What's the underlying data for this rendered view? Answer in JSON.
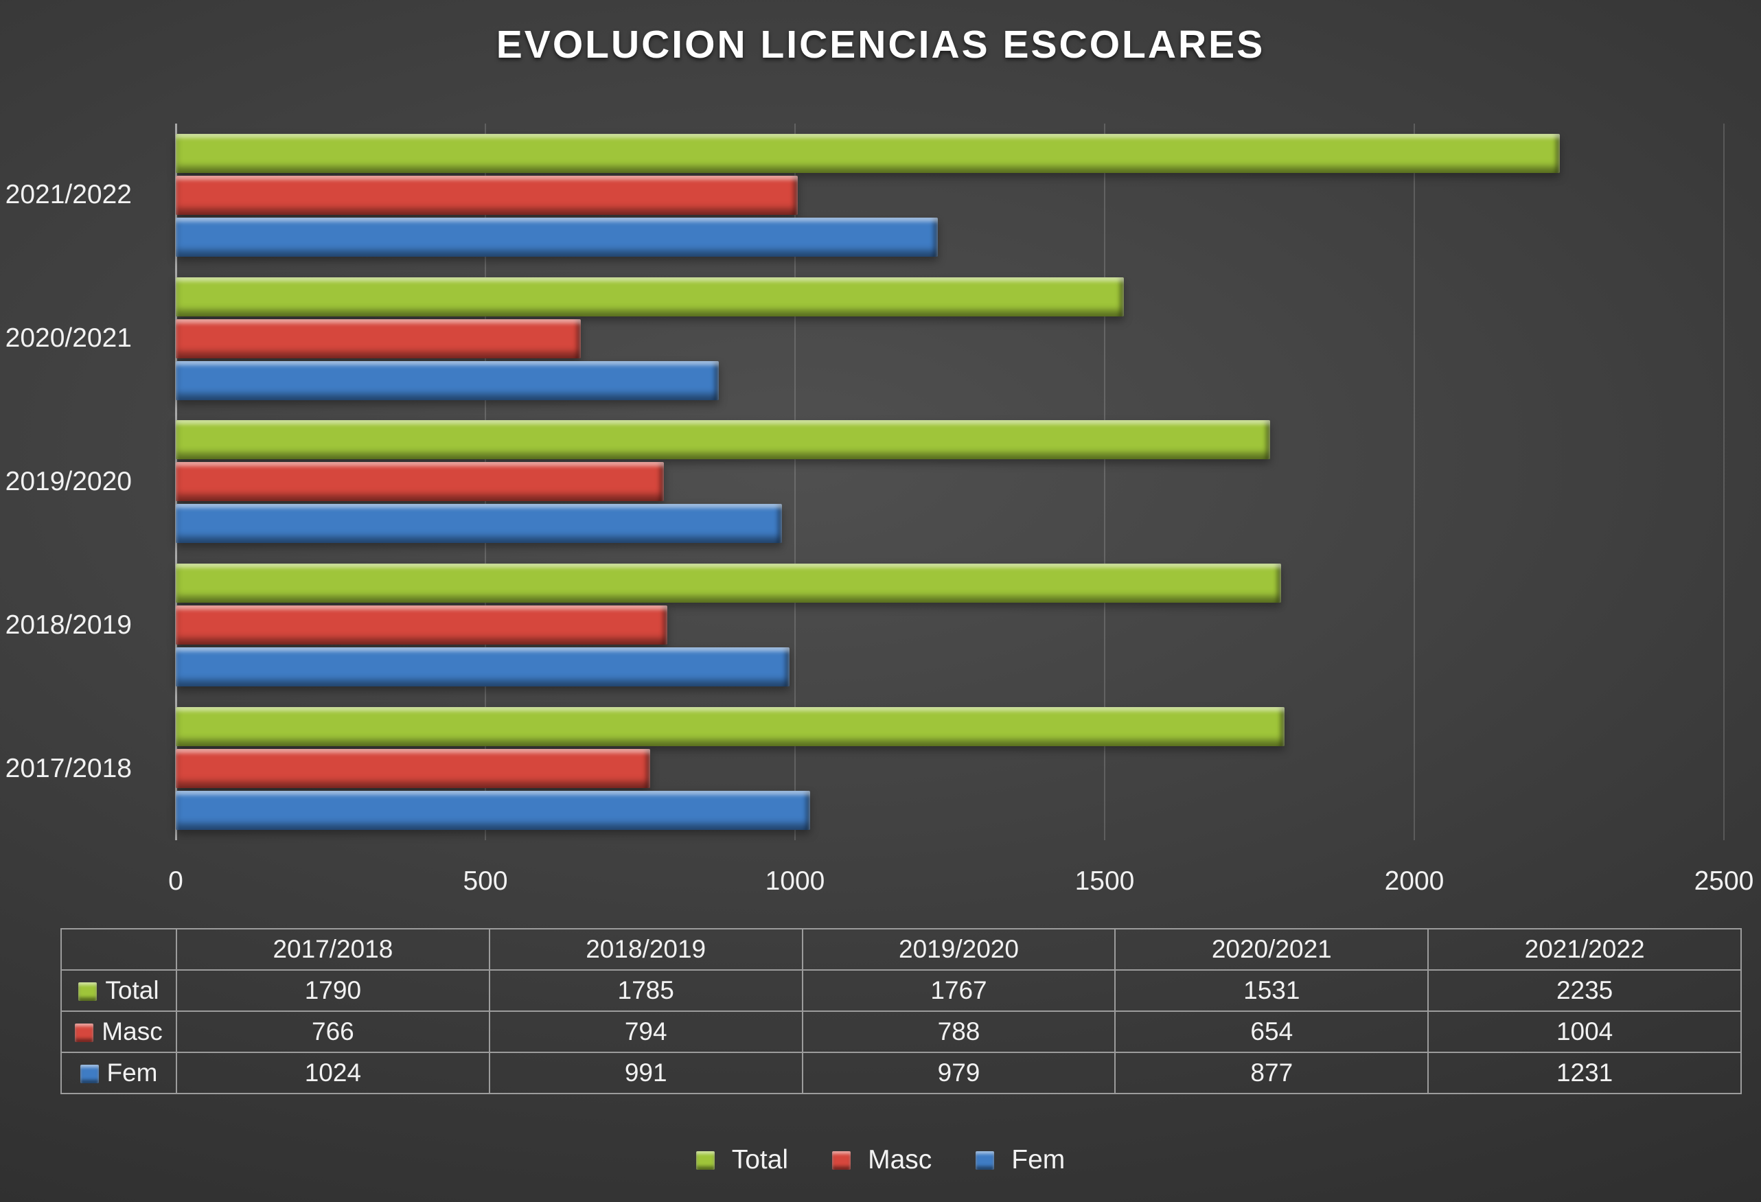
{
  "chart_data": {
    "type": "bar",
    "orientation": "horizontal",
    "title": "EVOLUCION LICENCIAS ESCOLARES",
    "categories": [
      "2017/2018",
      "2018/2019",
      "2019/2020",
      "2020/2021",
      "2021/2022"
    ],
    "series": [
      {
        "name": "Total",
        "color": "#9fc53a",
        "values": [
          1790,
          1785,
          1767,
          1531,
          2235
        ]
      },
      {
        "name": "Masc",
        "color": "#d6473d",
        "values": [
          766,
          794,
          788,
          654,
          1004
        ]
      },
      {
        "name": "Fem",
        "color": "#3f7cc4",
        "values": [
          1024,
          991,
          979,
          877,
          1231
        ]
      }
    ],
    "xlim": [
      0,
      2500
    ],
    "x_ticks": [
      0,
      500,
      1000,
      1500,
      2000,
      2500
    ],
    "grid": true,
    "legend_position": "bottom",
    "category_axis": "y",
    "category_display_order": "top-to-bottom: 2021/2022, 2020/2021, 2019/2020, 2018/2019, 2017/2018",
    "data_table_shown": true
  },
  "colors": {
    "background_center": "#505050",
    "background_edge": "#242424",
    "text": "#f2f2f2",
    "gridline": "#6f6f6f",
    "axis_line": "#bdbdbd",
    "table_border": "#9c9c9c"
  }
}
